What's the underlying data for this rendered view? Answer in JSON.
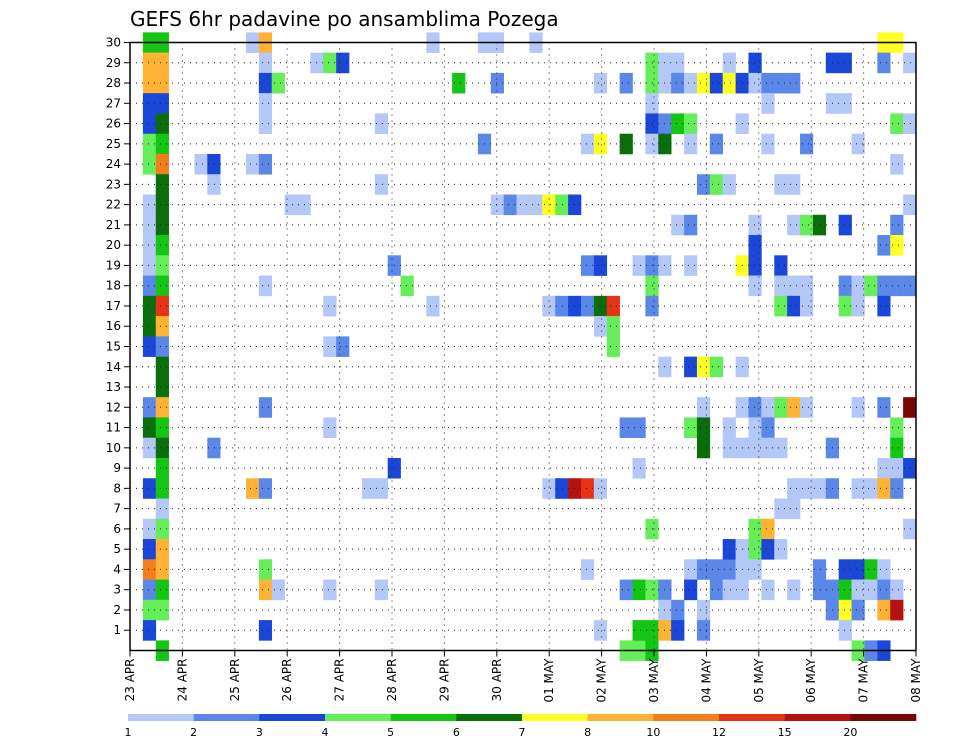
{
  "chart_data": {
    "type": "heatmap",
    "title": "GEFS 6hr padavine po ansamblima Pozega",
    "y_ticks": [
      "1",
      "2",
      "3",
      "4",
      "5",
      "6",
      "7",
      "8",
      "9",
      "10",
      "11",
      "12",
      "13",
      "14",
      "15",
      "16",
      "17",
      "18",
      "19",
      "20",
      "21",
      "22",
      "23",
      "24",
      "25",
      "26",
      "27",
      "28",
      "29",
      "30"
    ],
    "y_range": [
      0,
      30
    ],
    "x_ticks": [
      "23 APR",
      "24 APR",
      "25 APR",
      "26 APR",
      "27 APR",
      "28 APR",
      "29 APR",
      "30 APR",
      "01 MAY",
      "02 MAY",
      "03 MAY",
      "04 MAY",
      "05 MAY",
      "06 MAY",
      "07 MAY",
      "08 MAY"
    ],
    "x_columns": 61,
    "grid": true,
    "colorbar": {
      "tick_labels": [
        "1",
        "2",
        "3",
        "4",
        "5",
        "6",
        "7",
        "8",
        "10",
        "12",
        "15",
        "20"
      ],
      "colors": [
        "#b4c8f7",
        "#5b88e8",
        "#1a47d8",
        "#66ee5a",
        "#14c514",
        "#0a6e0a",
        "#ffff24",
        "#ffb233",
        "#f37f1c",
        "#e43316",
        "#b4120f",
        "#7a0505"
      ]
    },
    "cells": [
      [
        1,
        30,
        4
      ],
      [
        1,
        29,
        7
      ],
      [
        1,
        28,
        7
      ],
      [
        1,
        27,
        2
      ],
      [
        1,
        26,
        2
      ],
      [
        1,
        25,
        3
      ],
      [
        1,
        24,
        3
      ],
      [
        1,
        22,
        0
      ],
      [
        1,
        21,
        0
      ],
      [
        1,
        20,
        0
      ],
      [
        1,
        19,
        0
      ],
      [
        1,
        18,
        1
      ],
      [
        1,
        17,
        5
      ],
      [
        1,
        16,
        5
      ],
      [
        1,
        15,
        2
      ],
      [
        1,
        12,
        1
      ],
      [
        1,
        11,
        5
      ],
      [
        1,
        10,
        0
      ],
      [
        1,
        8,
        2
      ],
      [
        1,
        6,
        0
      ],
      [
        1,
        5,
        2
      ],
      [
        1,
        4,
        8
      ],
      [
        1,
        3,
        1
      ],
      [
        1,
        2,
        3
      ],
      [
        1,
        1,
        2
      ],
      [
        2,
        30,
        4
      ],
      [
        2,
        29,
        7
      ],
      [
        2,
        28,
        7
      ],
      [
        2,
        27,
        2
      ],
      [
        2,
        26,
        5
      ],
      [
        2,
        25,
        4
      ],
      [
        2,
        24,
        8
      ],
      [
        2,
        23,
        5
      ],
      [
        2,
        22,
        5
      ],
      [
        2,
        21,
        5
      ],
      [
        2,
        20,
        4
      ],
      [
        2,
        19,
        3
      ],
      [
        2,
        18,
        4
      ],
      [
        2,
        17,
        9
      ],
      [
        2,
        16,
        7
      ],
      [
        2,
        15,
        1
      ],
      [
        2,
        14,
        5
      ],
      [
        2,
        13,
        5
      ],
      [
        2,
        12,
        7
      ],
      [
        2,
        11,
        4
      ],
      [
        2,
        10,
        5
      ],
      [
        2,
        9,
        4
      ],
      [
        2,
        8,
        4
      ],
      [
        2,
        7,
        0
      ],
      [
        2,
        6,
        3
      ],
      [
        2,
        5,
        7
      ],
      [
        2,
        4,
        7
      ],
      [
        2,
        3,
        4
      ],
      [
        2,
        2,
        3
      ],
      [
        2,
        0,
        4
      ],
      [
        5,
        24,
        0
      ],
      [
        6,
        24,
        2
      ],
      [
        6,
        23,
        0
      ],
      [
        6,
        10,
        1
      ],
      [
        9,
        30,
        0
      ],
      [
        9,
        24,
        0
      ],
      [
        9,
        8,
        7
      ],
      [
        10,
        30,
        7
      ],
      [
        10,
        29,
        0
      ],
      [
        10,
        28,
        2
      ],
      [
        10,
        27,
        0
      ],
      [
        10,
        26,
        0
      ],
      [
        10,
        24,
        1
      ],
      [
        10,
        18,
        0
      ],
      [
        10,
        12,
        1
      ],
      [
        10,
        8,
        1
      ],
      [
        10,
        4,
        3
      ],
      [
        10,
        3,
        7
      ],
      [
        10,
        1,
        2
      ],
      [
        11,
        28,
        3
      ],
      [
        11,
        3,
        0
      ],
      [
        12,
        22,
        0
      ],
      [
        13,
        22,
        0
      ],
      [
        14,
        29,
        0
      ],
      [
        15,
        29,
        3
      ],
      [
        15,
        15,
        0
      ],
      [
        15,
        17,
        0
      ],
      [
        15,
        11,
        0
      ],
      [
        15,
        3,
        0
      ],
      [
        16,
        29,
        2
      ],
      [
        16,
        15,
        1
      ],
      [
        18,
        8,
        0
      ],
      [
        19,
        26,
        0
      ],
      [
        19,
        23,
        0
      ],
      [
        19,
        8,
        0
      ],
      [
        19,
        3,
        0
      ],
      [
        20,
        19,
        1
      ],
      [
        20,
        9,
        2
      ],
      [
        21,
        18,
        3
      ],
      [
        23,
        30,
        0
      ],
      [
        23,
        17,
        0
      ],
      [
        25,
        28,
        4
      ],
      [
        27,
        25,
        1
      ],
      [
        27,
        30,
        0
      ],
      [
        28,
        30,
        0
      ],
      [
        28,
        28,
        1
      ],
      [
        28,
        22,
        0
      ],
      [
        29,
        22,
        1
      ],
      [
        30,
        22,
        0
      ],
      [
        31,
        22,
        0
      ],
      [
        31,
        30,
        0
      ],
      [
        32,
        22,
        6
      ],
      [
        32,
        17,
        0
      ],
      [
        32,
        8,
        0
      ],
      [
        33,
        22,
        3
      ],
      [
        33,
        17,
        1
      ],
      [
        33,
        8,
        2
      ],
      [
        34,
        22,
        2
      ],
      [
        34,
        17,
        2
      ],
      [
        34,
        8,
        10
      ],
      [
        35,
        25,
        0
      ],
      [
        35,
        19,
        1
      ],
      [
        35,
        17,
        1
      ],
      [
        35,
        8,
        9
      ],
      [
        35,
        4,
        0
      ],
      [
        36,
        28,
        0
      ],
      [
        36,
        25,
        6
      ],
      [
        36,
        19,
        2
      ],
      [
        36,
        17,
        5
      ],
      [
        36,
        16,
        0
      ],
      [
        36,
        8,
        0
      ],
      [
        36,
        1,
        0
      ],
      [
        37,
        17,
        9
      ],
      [
        37,
        15,
        3
      ],
      [
        37,
        16,
        3
      ],
      [
        38,
        28,
        1
      ],
      [
        38,
        25,
        5
      ],
      [
        38,
        11,
        1
      ],
      [
        38,
        3,
        1
      ],
      [
        38,
        0,
        3
      ],
      [
        39,
        19,
        0
      ],
      [
        39,
        11,
        1
      ],
      [
        39,
        9,
        0
      ],
      [
        39,
        3,
        4
      ],
      [
        39,
        0,
        3
      ],
      [
        39,
        1,
        4
      ],
      [
        40,
        29,
        3
      ],
      [
        40,
        28,
        3
      ],
      [
        40,
        27,
        0
      ],
      [
        40,
        26,
        2
      ],
      [
        40,
        25,
        0
      ],
      [
        40,
        19,
        1
      ],
      [
        40,
        18,
        3
      ],
      [
        40,
        17,
        1
      ],
      [
        40,
        6,
        3
      ],
      [
        40,
        3,
        3
      ],
      [
        40,
        1,
        4
      ],
      [
        40,
        0,
        4
      ],
      [
        41,
        29,
        0
      ],
      [
        41,
        28,
        0
      ],
      [
        41,
        26,
        1
      ],
      [
        41,
        25,
        5
      ],
      [
        41,
        19,
        0
      ],
      [
        41,
        14,
        0
      ],
      [
        41,
        3,
        1
      ],
      [
        41,
        2,
        0
      ],
      [
        41,
        1,
        7
      ],
      [
        42,
        29,
        0
      ],
      [
        42,
        28,
        1
      ],
      [
        42,
        26,
        4
      ],
      [
        42,
        21,
        0
      ],
      [
        42,
        2,
        1
      ],
      [
        42,
        1,
        2
      ],
      [
        43,
        28,
        0
      ],
      [
        43,
        26,
        3
      ],
      [
        43,
        25,
        0
      ],
      [
        43,
        21,
        1
      ],
      [
        43,
        19,
        0
      ],
      [
        43,
        14,
        2
      ],
      [
        43,
        11,
        3
      ],
      [
        43,
        4,
        0
      ],
      [
        43,
        3,
        2
      ],
      [
        44,
        28,
        6
      ],
      [
        44,
        23,
        1
      ],
      [
        44,
        14,
        6
      ],
      [
        44,
        12,
        0
      ],
      [
        44,
        11,
        5
      ],
      [
        44,
        10,
        5
      ],
      [
        44,
        4,
        1
      ],
      [
        44,
        2,
        0
      ],
      [
        44,
        1,
        1
      ],
      [
        45,
        28,
        2
      ],
      [
        45,
        25,
        1
      ],
      [
        45,
        23,
        3
      ],
      [
        45,
        14,
        3
      ],
      [
        45,
        4,
        1
      ],
      [
        45,
        3,
        1
      ],
      [
        46,
        29,
        0
      ],
      [
        46,
        28,
        6
      ],
      [
        46,
        23,
        0
      ],
      [
        46,
        11,
        0
      ],
      [
        46,
        10,
        0
      ],
      [
        46,
        4,
        1
      ],
      [
        46,
        5,
        2
      ],
      [
        46,
        3,
        0
      ],
      [
        47,
        28,
        2
      ],
      [
        47,
        26,
        0
      ],
      [
        47,
        19,
        6
      ],
      [
        47,
        12,
        0
      ],
      [
        47,
        14,
        0
      ],
      [
        47,
        10,
        0
      ],
      [
        47,
        5,
        0
      ],
      [
        47,
        4,
        0
      ],
      [
        47,
        3,
        0
      ],
      [
        48,
        29,
        2
      ],
      [
        48,
        28,
        0
      ],
      [
        48,
        21,
        0
      ],
      [
        48,
        20,
        2
      ],
      [
        48,
        19,
        2
      ],
      [
        48,
        18,
        0
      ],
      [
        48,
        12,
        1
      ],
      [
        48,
        11,
        0
      ],
      [
        48,
        10,
        0
      ],
      [
        48,
        6,
        3
      ],
      [
        48,
        5,
        3
      ],
      [
        48,
        4,
        0
      ],
      [
        49,
        28,
        1
      ],
      [
        49,
        27,
        0
      ],
      [
        49,
        25,
        0
      ],
      [
        49,
        12,
        0
      ],
      [
        49,
        11,
        1
      ],
      [
        49,
        10,
        0
      ],
      [
        49,
        6,
        7
      ],
      [
        49,
        5,
        2
      ],
      [
        49,
        3,
        0
      ],
      [
        50,
        28,
        1
      ],
      [
        50,
        23,
        0
      ],
      [
        50,
        19,
        2
      ],
      [
        50,
        18,
        0
      ],
      [
        50,
        17,
        3
      ],
      [
        50,
        12,
        3
      ],
      [
        50,
        10,
        0
      ],
      [
        50,
        7,
        0
      ],
      [
        50,
        5,
        0
      ],
      [
        51,
        28,
        1
      ],
      [
        51,
        23,
        0
      ],
      [
        51,
        21,
        0
      ],
      [
        51,
        18,
        0
      ],
      [
        51,
        17,
        2
      ],
      [
        51,
        12,
        7
      ],
      [
        51,
        8,
        0
      ],
      [
        51,
        7,
        0
      ],
      [
        51,
        3,
        0
      ],
      [
        52,
        25,
        1
      ],
      [
        52,
        21,
        3
      ],
      [
        52,
        18,
        0
      ],
      [
        52,
        17,
        0
      ],
      [
        52,
        12,
        0
      ],
      [
        52,
        8,
        0
      ],
      [
        53,
        21,
        5
      ],
      [
        53,
        4,
        1
      ],
      [
        53,
        3,
        1
      ],
      [
        53,
        8,
        0
      ],
      [
        54,
        29,
        2
      ],
      [
        54,
        27,
        0
      ],
      [
        54,
        10,
        1
      ],
      [
        54,
        8,
        1
      ],
      [
        54,
        3,
        1
      ],
      [
        54,
        2,
        1
      ],
      [
        55,
        29,
        2
      ],
      [
        55,
        27,
        0
      ],
      [
        55,
        21,
        2
      ],
      [
        55,
        18,
        1
      ],
      [
        55,
        17,
        3
      ],
      [
        55,
        4,
        2
      ],
      [
        55,
        3,
        4
      ],
      [
        55,
        2,
        6
      ],
      [
        55,
        1,
        0
      ],
      [
        56,
        25,
        0
      ],
      [
        56,
        18,
        0
      ],
      [
        56,
        17,
        0
      ],
      [
        56,
        12,
        0
      ],
      [
        56,
        8,
        0
      ],
      [
        56,
        4,
        2
      ],
      [
        56,
        3,
        0
      ],
      [
        56,
        2,
        1
      ],
      [
        56,
        0,
        3
      ],
      [
        57,
        18,
        3
      ],
      [
        57,
        8,
        0
      ],
      [
        57,
        4,
        4
      ],
      [
        57,
        3,
        0
      ],
      [
        57,
        0,
        1
      ],
      [
        58,
        30,
        6
      ],
      [
        58,
        29,
        1
      ],
      [
        58,
        20,
        1
      ],
      [
        58,
        18,
        1
      ],
      [
        58,
        17,
        2
      ],
      [
        58,
        12,
        1
      ],
      [
        58,
        9,
        0
      ],
      [
        58,
        8,
        7
      ],
      [
        58,
        4,
        0
      ],
      [
        58,
        3,
        1
      ],
      [
        58,
        2,
        7
      ],
      [
        58,
        0,
        2
      ],
      [
        59,
        30,
        6
      ],
      [
        59,
        26,
        3
      ],
      [
        59,
        24,
        0
      ],
      [
        59,
        21,
        1
      ],
      [
        59,
        20,
        6
      ],
      [
        59,
        18,
        1
      ],
      [
        59,
        11,
        3
      ],
      [
        59,
        10,
        4
      ],
      [
        59,
        9,
        0
      ],
      [
        59,
        8,
        1
      ],
      [
        59,
        3,
        0
      ],
      [
        59,
        2,
        10
      ],
      [
        60,
        29,
        0
      ],
      [
        60,
        26,
        0
      ],
      [
        60,
        22,
        0
      ],
      [
        60,
        18,
        1
      ],
      [
        60,
        12,
        11
      ],
      [
        60,
        9,
        2
      ],
      [
        60,
        6,
        0
      ]
    ]
  }
}
